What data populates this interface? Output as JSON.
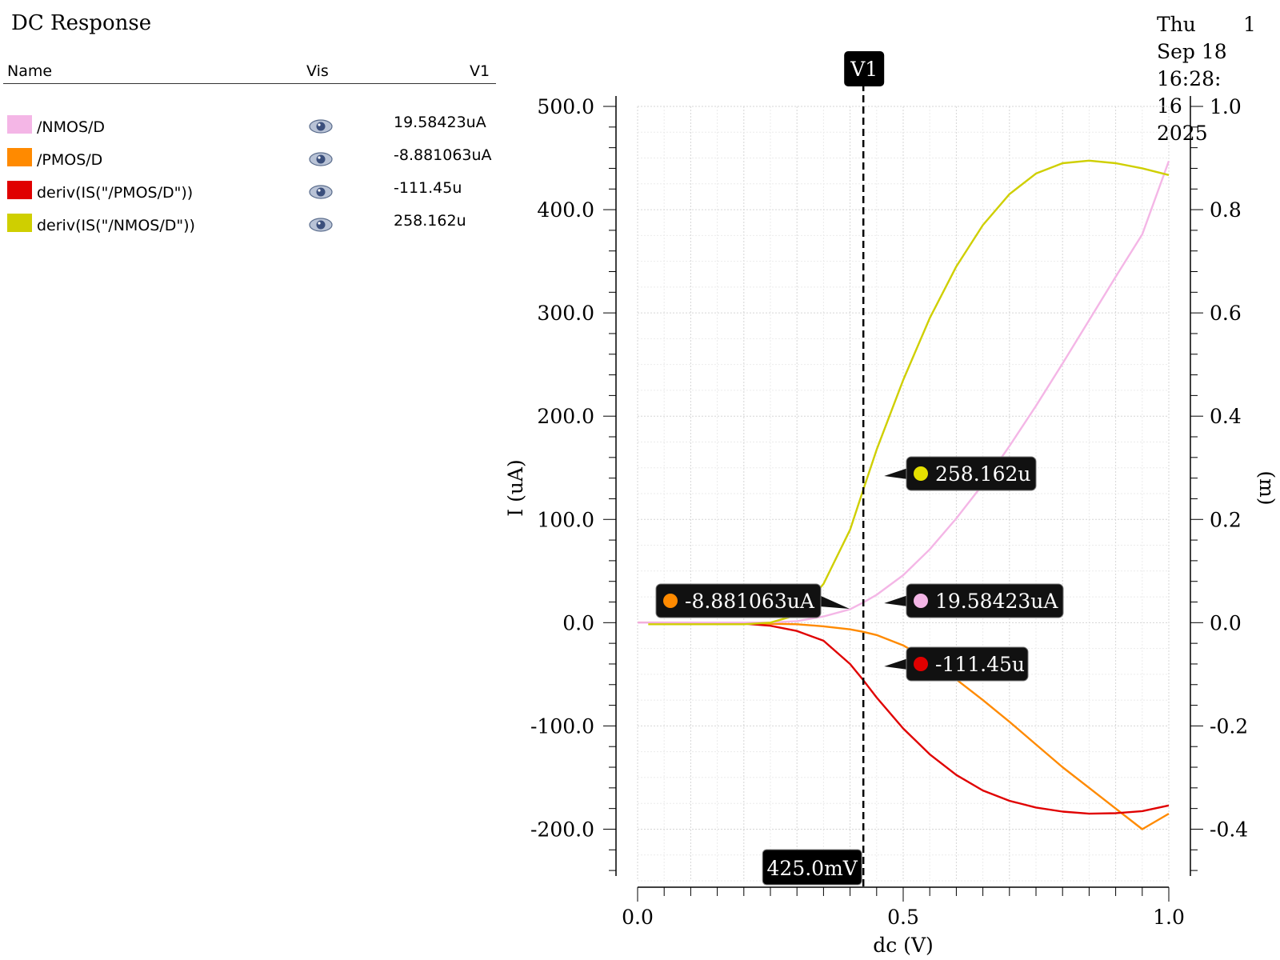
{
  "window": {
    "title": "DC Response"
  },
  "timestamp": {
    "line1": "Thu",
    "line2": "Sep 18",
    "line3": "16:28:",
    "line4": "16",
    "line5": "2025",
    "corner_number": "1"
  },
  "legend": {
    "headers": {
      "name": "Name",
      "vis": "Vis",
      "value": "V1"
    },
    "items": [
      {
        "name": "/NMOS/D",
        "value": "19.58423uA",
        "color": "#f4b6e6",
        "icon": "eye-icon"
      },
      {
        "name": "/PMOS/D",
        "value": "-8.881063uA",
        "color": "#ff8a00",
        "icon": "eye-icon"
      },
      {
        "name": "deriv(IS(\"/PMOS/D\"))",
        "value": "-111.45u",
        "color": "#e00000",
        "icon": "eye-icon"
      },
      {
        "name": "deriv(IS(\"/NMOS/D\"))",
        "value": "258.162u",
        "color": "#cfcf00",
        "icon": "eye-icon"
      }
    ]
  },
  "chart_data": {
    "type": "line",
    "xlabel": "dc (V)",
    "ylabel": "I (uA)",
    "y2label": "(m)",
    "xlim": [
      0.0,
      1.0
    ],
    "ylim": [
      -250,
      500
    ],
    "y2lim": [
      -0.5,
      1.0
    ],
    "xticks": [
      "0.0",
      "0.5",
      "1.0"
    ],
    "yticks": [
      "500.0",
      "400.0",
      "300.0",
      "200.0",
      "100.0",
      "0.0",
      "-100.0",
      "-200.0"
    ],
    "y2ticks": [
      "1.0",
      "0.8",
      "0.6",
      "0.4",
      "0.2",
      "0.0",
      "-0.2",
      "-0.4"
    ],
    "grid": true,
    "series": [
      {
        "name": "/NMOS/D",
        "axis": "left",
        "color": "#f4b6e6",
        "x": [
          0.0,
          0.25,
          0.3,
          0.35,
          0.4,
          0.425,
          0.45,
          0.5,
          0.55,
          0.6,
          0.65,
          0.7,
          0.75,
          0.8,
          0.85,
          0.9,
          0.95,
          1.0
        ],
        "y": [
          0,
          0.2,
          1.5,
          6,
          13,
          19.58,
          27,
          46,
          71,
          101,
          134,
          171,
          210,
          251,
          293,
          335,
          376,
          447
        ]
      },
      {
        "name": "/PMOS/D",
        "axis": "left",
        "color": "#ff8a00",
        "x": [
          0.0,
          0.1,
          0.2,
          0.3,
          0.35,
          0.4,
          0.425,
          0.45,
          0.5,
          0.55,
          0.6,
          0.65,
          0.7,
          0.75,
          0.8,
          0.85,
          0.9,
          0.95,
          1.0
        ],
        "y": [
          0,
          0,
          -0.5,
          -1.5,
          -3.5,
          -6.5,
          -8.88,
          -12,
          -22,
          -37,
          -55,
          -75,
          -96,
          -118,
          -140,
          -160,
          -180,
          -200,
          -185
        ]
      },
      {
        "name": "deriv(IS(\"/PMOS/D\"))",
        "axis": "right",
        "color": "#e00000",
        "x": [
          0.0,
          0.1,
          0.2,
          0.25,
          0.3,
          0.35,
          0.4,
          0.425,
          0.45,
          0.5,
          0.55,
          0.6,
          0.65,
          0.7,
          0.75,
          0.8,
          0.85,
          0.9,
          0.95,
          1.0
        ],
        "y": [
          0,
          0,
          -0.002,
          -0.006,
          -0.016,
          -0.035,
          -0.08,
          -0.11145,
          -0.145,
          -0.205,
          -0.255,
          -0.295,
          -0.325,
          -0.345,
          -0.358,
          -0.366,
          -0.37,
          -0.369,
          -0.365,
          -0.354
        ]
      },
      {
        "name": "deriv(IS(\"/NMOS/D\"))",
        "axis": "right",
        "color": "#cfcf00",
        "x": [
          0.02,
          0.2,
          0.25,
          0.3,
          0.35,
          0.4,
          0.425,
          0.45,
          0.5,
          0.55,
          0.6,
          0.65,
          0.7,
          0.75,
          0.8,
          0.85,
          0.9,
          0.95,
          1.0
        ],
        "y": [
          -0.003,
          -0.003,
          0.0,
          0.015,
          0.075,
          0.18,
          0.258,
          0.335,
          0.47,
          0.59,
          0.69,
          0.77,
          0.83,
          0.87,
          0.89,
          0.895,
          0.89,
          0.88,
          0.867
        ]
      }
    ],
    "cursor": {
      "label": "V1",
      "x": 0.425,
      "x_readout": "425.0mV"
    },
    "markers": [
      {
        "series": "/PMOS/D",
        "text": "-8.881063uA",
        "color": "#ff8a00"
      },
      {
        "series": "deriv(IS(\"/NMOS/D\"))",
        "text": "258.162u",
        "color": "#e5e000"
      },
      {
        "series": "/NMOS/D",
        "text": "19.58423uA",
        "color": "#f4b6e6"
      },
      {
        "series": "deriv(IS(\"/PMOS/D\"))",
        "text": "-111.45u",
        "color": "#e00000"
      }
    ]
  }
}
